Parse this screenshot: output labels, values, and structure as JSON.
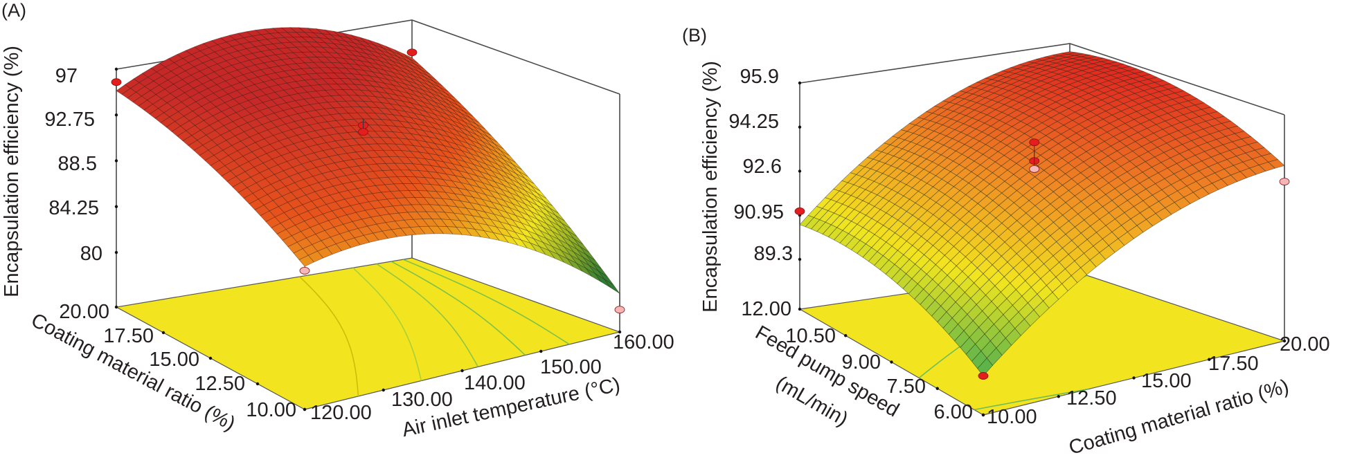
{
  "chart_data": [
    {
      "type": "surface3d",
      "panel_label": "(A)",
      "title": "",
      "xlabel": "Air inlet temperature (°C)",
      "ylabel": "Coating material ratio (%)",
      "zlabel": "Encapsulation efficiency (%)",
      "x_ticks": [
        "120.00",
        "130.00",
        "140.00",
        "150.00",
        "160.00"
      ],
      "y_ticks": [
        "10.00",
        "12.50",
        "15.00",
        "17.50",
        "20.00"
      ],
      "z_ticks": [
        "80",
        "84.25",
        "88.5",
        "92.75",
        "97"
      ],
      "xlim": [
        120,
        160
      ],
      "ylim": [
        10,
        20
      ],
      "zlim": [
        80,
        97
      ],
      "floor_color": "#f2e51f",
      "colormap": [
        "#2e7d32",
        "#f2e51f",
        "#e8541c",
        "#c62828"
      ],
      "surface_corners": [
        {
          "x": 120,
          "y": 20,
          "z": 95.0
        },
        {
          "x": 120,
          "y": 10,
          "z": 88.2
        },
        {
          "x": 160,
          "y": 20,
          "z": 93.5
        },
        {
          "x": 160,
          "y": 10,
          "z": 78.5
        }
      ],
      "design_points": [
        {
          "x": 120,
          "y": 20,
          "z": 95.8,
          "position": "above"
        },
        {
          "x": 120,
          "y": 10,
          "z": 87.8,
          "position": "below"
        },
        {
          "x": 140,
          "y": 15,
          "z": 93.6,
          "position": "above"
        },
        {
          "x": 140,
          "y": 15,
          "z": 93.0,
          "position": "above"
        },
        {
          "x": 160,
          "y": 20,
          "z": 94.0,
          "position": "above"
        },
        {
          "x": 160,
          "y": 10,
          "z": 77.0,
          "position": "below"
        }
      ]
    },
    {
      "type": "surface3d",
      "panel_label": "(B)",
      "title": "",
      "xlabel": "Coating material ratio (%)",
      "ylabel": "Feed pump speed (mL/min)",
      "zlabel": "Encapsulation efficiency (%)",
      "x_ticks": [
        "10.00",
        "12.50",
        "15.00",
        "17.50",
        "20.00"
      ],
      "y_ticks": [
        "6.00",
        "7.50",
        "9.00",
        "10.50",
        "12.00"
      ],
      "z_ticks": [
        "89.3",
        "90.95",
        "92.6",
        "94.25",
        "95.9"
      ],
      "xlim": [
        10,
        20
      ],
      "ylim": [
        6,
        12
      ],
      "zlim": [
        89.3,
        95.9
      ],
      "floor_color": "#f2e51f",
      "colormap": [
        "#4caf50",
        "#f2e51f",
        "#f08a24",
        "#e02020"
      ],
      "surface_corners": [
        {
          "x": 10,
          "y": 12,
          "z": 90.6
        },
        {
          "x": 10,
          "y": 6,
          "z": 88.9
        },
        {
          "x": 20,
          "y": 12,
          "z": 95.6
        },
        {
          "x": 20,
          "y": 6,
          "z": 94.0
        }
      ],
      "design_points": [
        {
          "x": 10,
          "y": 12,
          "z": 91.1,
          "position": "above"
        },
        {
          "x": 10,
          "y": 6,
          "z": 88.9,
          "position": "above"
        },
        {
          "x": 15,
          "y": 9,
          "z": 94.6,
          "position": "above"
        },
        {
          "x": 15,
          "y": 9,
          "z": 93.9,
          "position": "above"
        },
        {
          "x": 15,
          "y": 9,
          "z": 93.6,
          "position": "below"
        },
        {
          "x": 20,
          "y": 6,
          "z": 93.4,
          "position": "below"
        }
      ]
    }
  ]
}
